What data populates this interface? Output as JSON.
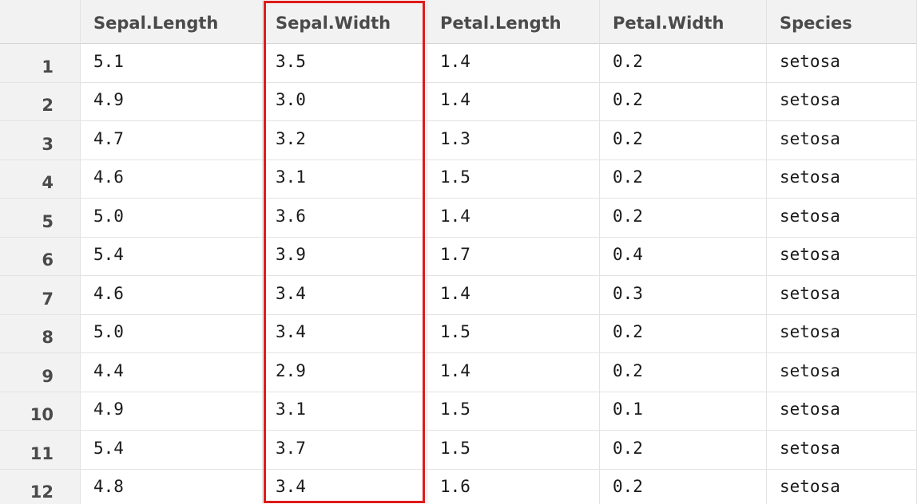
{
  "table": {
    "columns": [
      "Sepal.Length",
      "Sepal.Width",
      "Petal.Length",
      "Petal.Width",
      "Species"
    ],
    "rows": [
      {
        "n": "1",
        "cells": [
          "5.1",
          "3.5",
          "1.4",
          "0.2",
          "setosa"
        ]
      },
      {
        "n": "2",
        "cells": [
          "4.9",
          "3.0",
          "1.4",
          "0.2",
          "setosa"
        ]
      },
      {
        "n": "3",
        "cells": [
          "4.7",
          "3.2",
          "1.3",
          "0.2",
          "setosa"
        ]
      },
      {
        "n": "4",
        "cells": [
          "4.6",
          "3.1",
          "1.5",
          "0.2",
          "setosa"
        ]
      },
      {
        "n": "5",
        "cells": [
          "5.0",
          "3.6",
          "1.4",
          "0.2",
          "setosa"
        ]
      },
      {
        "n": "6",
        "cells": [
          "5.4",
          "3.9",
          "1.7",
          "0.4",
          "setosa"
        ]
      },
      {
        "n": "7",
        "cells": [
          "4.6",
          "3.4",
          "1.4",
          "0.3",
          "setosa"
        ]
      },
      {
        "n": "8",
        "cells": [
          "5.0",
          "3.4",
          "1.5",
          "0.2",
          "setosa"
        ]
      },
      {
        "n": "9",
        "cells": [
          "4.4",
          "2.9",
          "1.4",
          "0.2",
          "setosa"
        ]
      },
      {
        "n": "10",
        "cells": [
          "4.9",
          "3.1",
          "1.5",
          "0.1",
          "setosa"
        ]
      },
      {
        "n": "11",
        "cells": [
          "5.4",
          "3.7",
          "1.5",
          "0.2",
          "setosa"
        ]
      },
      {
        "n": "12",
        "cells": [
          "4.8",
          "3.4",
          "1.6",
          "0.2",
          "setosa"
        ]
      }
    ]
  },
  "highlighted_column": "Sepal.Width",
  "colors": {
    "highlight_border": "#e01b1b",
    "header_background": "#f2f2f2",
    "grid_line": "#e3e3e3"
  }
}
